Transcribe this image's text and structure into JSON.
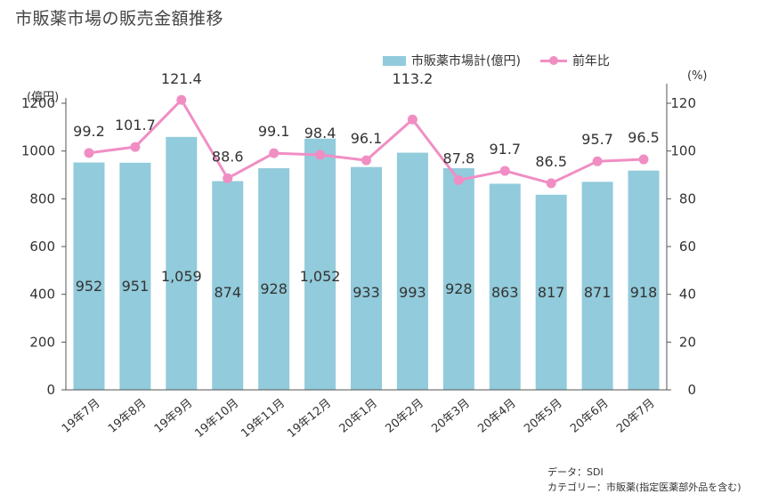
{
  "title": "市販薬市場の販売金額推移",
  "legend": {
    "bar_label": "市販薬市場計(億円)",
    "line_label": "前年比"
  },
  "units": {
    "left": "(億円)",
    "right": "(%)"
  },
  "source": {
    "line1": "データ：SDI",
    "line2": "カテゴリー：市販薬(指定医薬部外品を含む)"
  },
  "colors": {
    "bar": "#92cbdb",
    "line": "#f08ec4",
    "axis": "#555555"
  },
  "chart_data": {
    "type": "bar",
    "categories": [
      "19年7月",
      "19年8月",
      "19年9月",
      "19年10月",
      "19年11月",
      "19年12月",
      "20年1月",
      "20年2月",
      "20年3月",
      "20年4月",
      "20年5月",
      "20年6月",
      "20年7月"
    ],
    "series": [
      {
        "name": "市販薬市場計(億円)",
        "type": "bar",
        "axis": "left",
        "values": [
          952,
          951,
          1059,
          874,
          928,
          1052,
          933,
          993,
          928,
          863,
          817,
          871,
          918
        ],
        "labels": [
          "952",
          "951",
          "1,059",
          "874",
          "928",
          "1,052",
          "933",
          "993",
          "928",
          "863",
          "817",
          "871",
          "918"
        ]
      },
      {
        "name": "前年比",
        "type": "line",
        "axis": "right",
        "values": [
          99.2,
          101.7,
          121.4,
          88.6,
          99.1,
          98.4,
          96.1,
          113.2,
          87.8,
          91.7,
          86.5,
          95.7,
          96.5
        ],
        "labels": [
          "99.2",
          "101.7",
          "121.4",
          "88.6",
          "99.1",
          "98.4",
          "96.1",
          "113.2",
          "87.8",
          "91.7",
          "86.5",
          "95.7",
          "96.5"
        ]
      }
    ],
    "y_left": {
      "range": [
        0,
        1200
      ],
      "ticks": [
        "0",
        "200",
        "400",
        "600",
        "800",
        "1000",
        "1200"
      ]
    },
    "y_right": {
      "range": [
        0,
        120
      ],
      "ticks": [
        "0",
        "20",
        "40",
        "60",
        "80",
        "100",
        "120"
      ]
    },
    "grid": false,
    "legend_position": "top-right"
  }
}
